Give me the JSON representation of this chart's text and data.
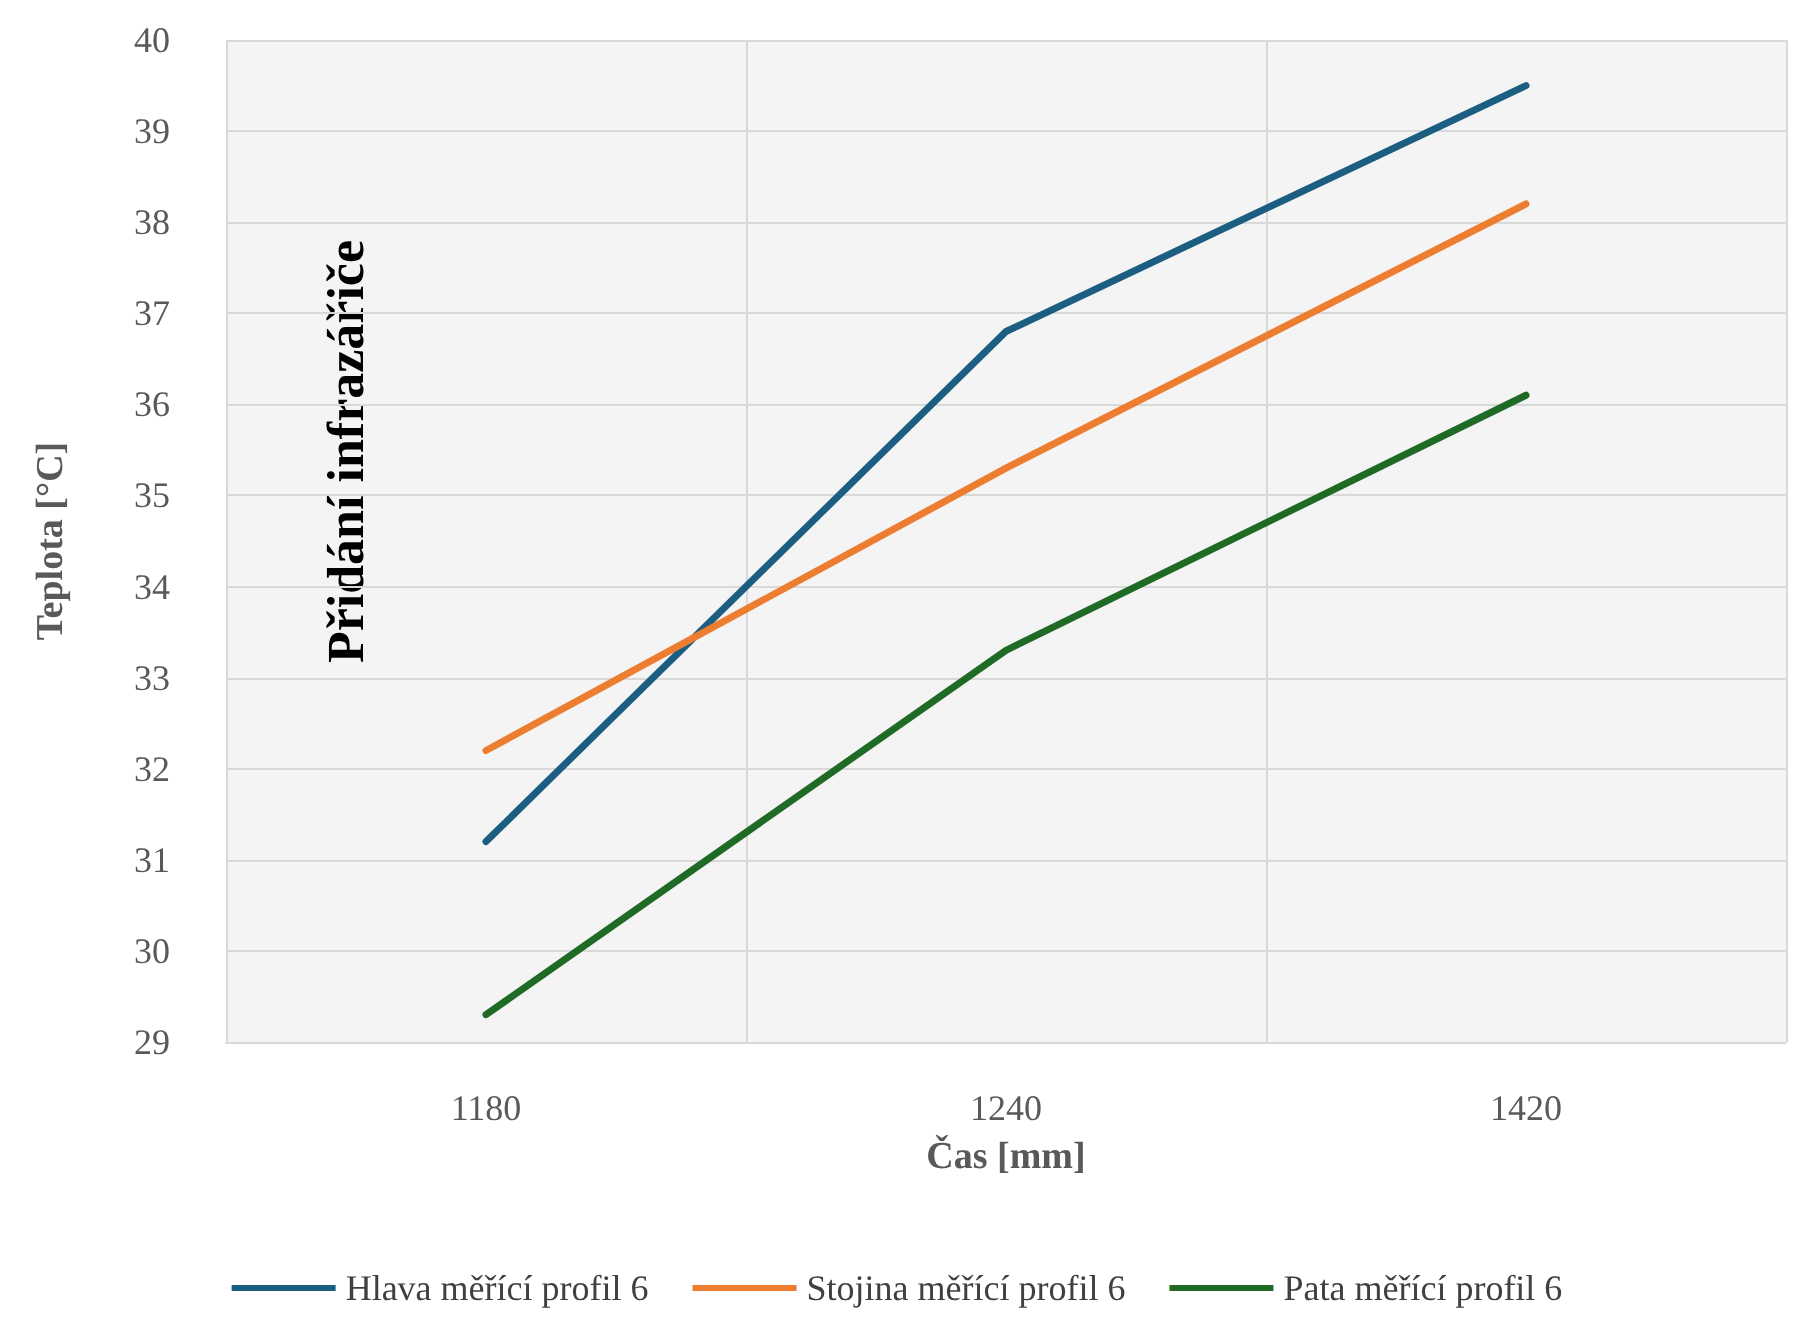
{
  "chart_data": {
    "type": "line",
    "xlabel": "Čas [mm]",
    "ylabel": "Teplota [°C]",
    "categories": [
      "1180",
      "1240",
      "1420"
    ],
    "series": [
      {
        "name": "Hlava měřící profil 6",
        "color": "#1b5e82",
        "values": [
          31.2,
          36.8,
          39.5
        ]
      },
      {
        "name": "Stojina měřící profil 6",
        "color": "#ed7d31",
        "values": [
          32.2,
          35.3,
          38.2
        ]
      },
      {
        "name": "Pata měřící profil 6",
        "color": "#1f6b25",
        "values": [
          29.3,
          33.3,
          36.1
        ]
      }
    ],
    "ylim": [
      29,
      40
    ],
    "yticks": [
      29,
      30,
      31,
      32,
      33,
      34,
      35,
      36,
      37,
      38,
      39,
      40
    ],
    "grid": true,
    "legend": "bottom",
    "marker": "none",
    "line_style": "solid",
    "annotations": [
      "Přidání infrazářiče"
    ]
  }
}
